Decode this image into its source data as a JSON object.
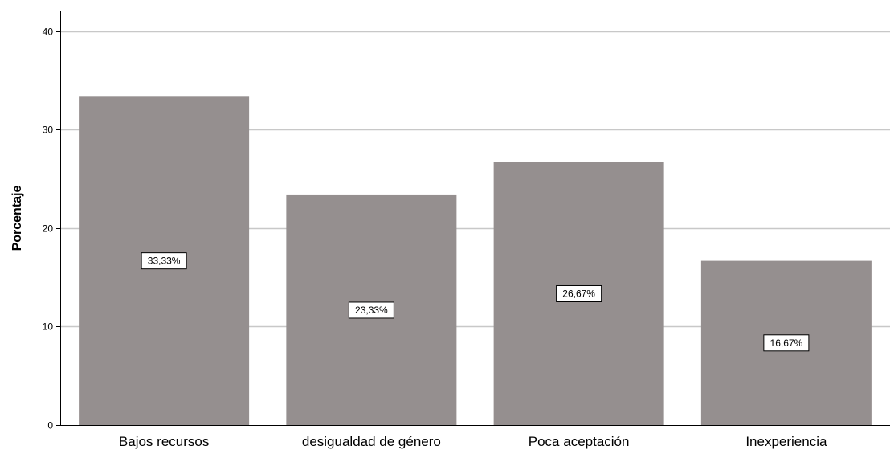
{
  "chart_data": {
    "type": "bar",
    "categories": [
      "Bajos recursos",
      "desigualdad de género",
      "Poca aceptación",
      "Inexperiencia"
    ],
    "values": [
      33.33,
      23.33,
      26.67,
      16.67
    ],
    "data_labels": [
      "33,33%",
      "23,33%",
      "26,67%",
      "16,67%"
    ],
    "title": "",
    "xlabel": "",
    "ylabel": "Porcentaje",
    "ylim": [
      0,
      42
    ],
    "yticks": [
      0,
      10,
      20,
      30,
      40
    ],
    "ytick_labels": [
      "0",
      "10",
      "20",
      "30",
      "40"
    ],
    "grid": true,
    "bar_color": "#958f8f",
    "grid_color": "#c8c8c8"
  }
}
